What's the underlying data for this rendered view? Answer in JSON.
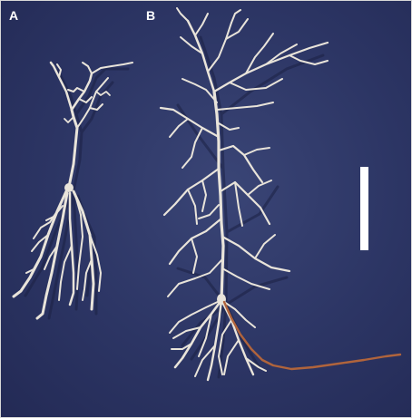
{
  "panels": [
    {
      "label": "A"
    },
    {
      "label": "B"
    }
  ],
  "colors": {
    "background": "#2c3564",
    "dendrite": "#e9e4da",
    "shadow": "#1b2043",
    "axon": "#b0643c",
    "scale_bar": "#ffffff",
    "label": "#ffffff"
  }
}
